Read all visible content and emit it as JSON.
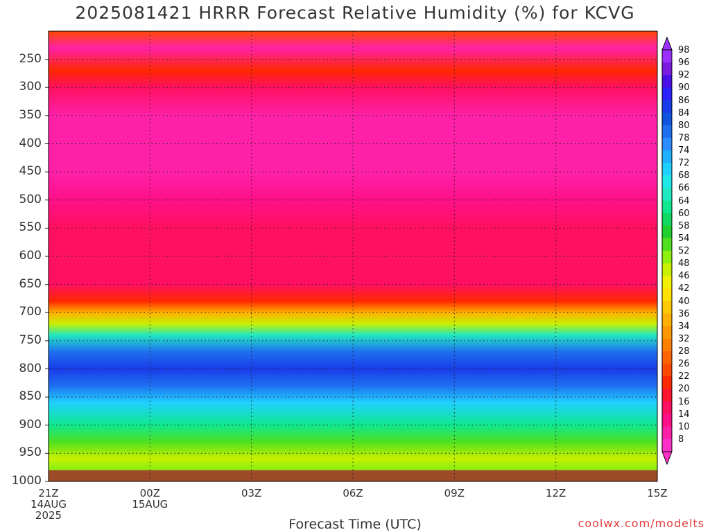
{
  "chart_data": {
    "type": "heatmap",
    "title": "2025081421 HRRR Forecast Relative Humidity (%) for KCVG",
    "xlabel": "Forecast Time (UTC)",
    "ylabel": "",
    "credit": "coolwx.com/modelts",
    "x_ticks": [
      {
        "label": "21Z",
        "sub1": "14AUG",
        "sub2": "2025",
        "hour": 0
      },
      {
        "label": "00Z",
        "sub1": "15AUG",
        "sub2": "",
        "hour": 3
      },
      {
        "label": "03Z",
        "sub1": "",
        "sub2": "",
        "hour": 6
      },
      {
        "label": "06Z",
        "sub1": "",
        "sub2": "",
        "hour": 9
      },
      {
        "label": "09Z",
        "sub1": "",
        "sub2": "",
        "hour": 12
      },
      {
        "label": "12Z",
        "sub1": "",
        "sub2": "",
        "hour": 15
      },
      {
        "label": "15Z",
        "sub1": "",
        "sub2": "",
        "hour": 18
      }
    ],
    "x_range_hours": [
      0,
      18
    ],
    "y_ticks": [
      250,
      300,
      350,
      400,
      450,
      500,
      550,
      600,
      650,
      700,
      750,
      800,
      850,
      900,
      950,
      1000
    ],
    "y_range_hPa": [
      200,
      1000
    ],
    "colorbar_labels": [
      98,
      96,
      92,
      90,
      86,
      84,
      80,
      78,
      74,
      72,
      68,
      66,
      64,
      60,
      58,
      54,
      52,
      48,
      46,
      42,
      40,
      36,
      34,
      32,
      28,
      26,
      22,
      20,
      16,
      14,
      10,
      8
    ],
    "colorbar_colors": [
      "#9b30ff",
      "#7a1de0",
      "#4a10e8",
      "#2a22ff",
      "#1a3ce8",
      "#0f55e0",
      "#1e6ff0",
      "#2a8cff",
      "#1fb0ff",
      "#20d0ff",
      "#20e8e8",
      "#20e8c0",
      "#10e890",
      "#10d860",
      "#20d030",
      "#50e020",
      "#90f010",
      "#c8f000",
      "#f0f000",
      "#ffe000",
      "#ffc800",
      "#ffb000",
      "#ff9800",
      "#ff8000",
      "#ff6400",
      "#ff4800",
      "#ff2800",
      "#ff1430",
      "#ff1060",
      "#ff1088",
      "#ff20a8",
      "#ff30c8"
    ],
    "profile": [
      {
        "p": 200,
        "rh": 26
      },
      {
        "p": 230,
        "rh": 12
      },
      {
        "p": 270,
        "rh": 24
      },
      {
        "p": 300,
        "rh": 18
      },
      {
        "p": 350,
        "rh": 12
      },
      {
        "p": 400,
        "rh": 12
      },
      {
        "p": 450,
        "rh": 10
      },
      {
        "p": 500,
        "rh": 15
      },
      {
        "p": 550,
        "rh": 17
      },
      {
        "p": 600,
        "rh": 18
      },
      {
        "p": 650,
        "rh": 19
      },
      {
        "p": 680,
        "rh": 24
      },
      {
        "p": 700,
        "rh": 36
      },
      {
        "p": 720,
        "rh": 50
      },
      {
        "p": 740,
        "rh": 66
      },
      {
        "p": 770,
        "rh": 80
      },
      {
        "p": 800,
        "rh": 88
      },
      {
        "p": 830,
        "rh": 80
      },
      {
        "p": 860,
        "rh": 72
      },
      {
        "p": 900,
        "rh": 64
      },
      {
        "p": 930,
        "rh": 56
      },
      {
        "p": 960,
        "rh": 48
      },
      {
        "p": 975,
        "rh": 52
      }
    ],
    "surface_below_hPa": 980
  }
}
